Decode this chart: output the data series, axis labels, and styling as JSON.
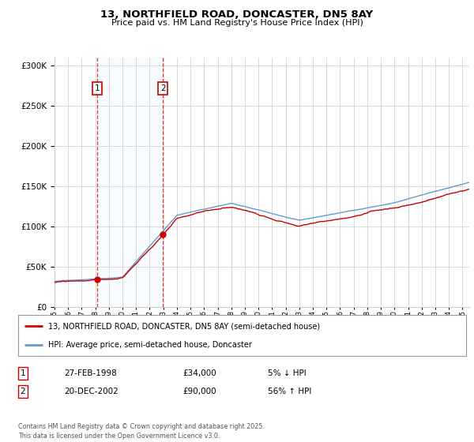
{
  "title": "13, NORTHFIELD ROAD, DONCASTER, DN5 8AY",
  "subtitle": "Price paid vs. HM Land Registry's House Price Index (HPI)",
  "ylim": [
    0,
    310000
  ],
  "yticks": [
    0,
    50000,
    100000,
    150000,
    200000,
    250000,
    300000
  ],
  "xlim": [
    1995.0,
    2025.5
  ],
  "sale1": {
    "date_num": 1998.15,
    "price": 34000,
    "label": "1"
  },
  "sale2": {
    "date_num": 2002.97,
    "price": 90000,
    "label": "2"
  },
  "legend1": "13, NORTHFIELD ROAD, DONCASTER, DN5 8AY (semi-detached house)",
  "legend2": "HPI: Average price, semi-detached house, Doncaster",
  "footnote": "Contains HM Land Registry data © Crown copyright and database right 2025.\nThis data is licensed under the Open Government Licence v3.0.",
  "table_rows": [
    {
      "num": "1",
      "date": "27-FEB-1998",
      "price": "£34,000",
      "pct": "5% ↓ HPI"
    },
    {
      "num": "2",
      "date": "20-DEC-2002",
      "price": "£90,000",
      "pct": "56% ↑ HPI"
    }
  ],
  "line_color_red": "#cc0000",
  "line_color_blue": "#6699cc",
  "shade_color": "#ddeeff",
  "box_color": "#cc0000",
  "bg_color": "#ffffff",
  "grid_color": "#cccccc",
  "hpi_seed": 42,
  "price_seed": 99
}
